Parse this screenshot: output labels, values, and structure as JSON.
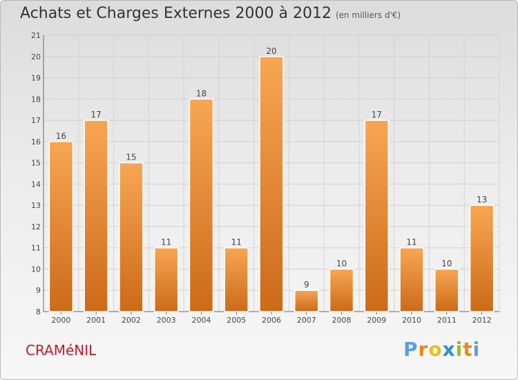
{
  "title": "Achats et Charges Externes 2000 à 2012",
  "subtitle": "(en milliers d'€)",
  "place_name": "CRAMéNIL",
  "logo": {
    "letters": [
      "P",
      "r",
      "o",
      "x",
      "i",
      "t",
      "i"
    ],
    "colors": [
      "#5aa0d8",
      "#e88a18",
      "#e4c318",
      "#2e8fd0",
      "#8fbe25",
      "#e88a18",
      "#5aa0d8"
    ]
  },
  "chart_data": {
    "type": "bar",
    "title": "Achats et Charges Externes 2000 à 2012",
    "subtitle": "(en milliers d'€)",
    "categories": [
      "2000",
      "2001",
      "2002",
      "2003",
      "2004",
      "2005",
      "2006",
      "2007",
      "2008",
      "2009",
      "2010",
      "2011",
      "2012"
    ],
    "values": [
      16,
      17,
      15,
      11,
      18,
      11,
      20,
      9,
      10,
      17,
      11,
      10,
      13
    ],
    "ylim": [
      8,
      21
    ],
    "yticks": [
      8,
      9,
      10,
      11,
      12,
      13,
      14,
      15,
      16,
      17,
      18,
      19,
      20,
      21
    ],
    "xlabel": "",
    "ylabel": "",
    "grid": true,
    "bar_color_top": "#f8a653",
    "bar_color_bottom": "#cc6a18"
  }
}
